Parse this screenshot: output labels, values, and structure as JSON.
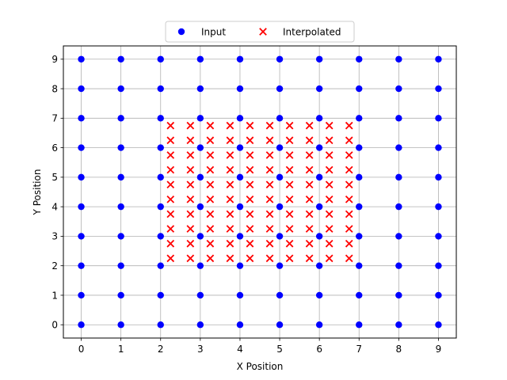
{
  "chart_data": {
    "type": "scatter",
    "xlabel": "X Position",
    "ylabel": "Y Position",
    "xlim": [
      -0.45,
      9.45
    ],
    "ylim": [
      -0.45,
      9.45
    ],
    "xticks": [
      0,
      1,
      2,
      3,
      4,
      5,
      6,
      7,
      8,
      9
    ],
    "yticks": [
      0,
      1,
      2,
      3,
      4,
      5,
      6,
      7,
      8,
      9
    ],
    "xtick_labels": [
      "0",
      "1",
      "2",
      "3",
      "4",
      "5",
      "6",
      "7",
      "8",
      "9"
    ],
    "ytick_labels": [
      "0",
      "1",
      "2",
      "3",
      "4",
      "5",
      "6",
      "7",
      "8",
      "9"
    ],
    "grid": true,
    "legend_placement": "top-center",
    "series": [
      {
        "name": "Input",
        "marker": "circle",
        "color": "#0000ff",
        "x_values": [
          0,
          1,
          2,
          3,
          4,
          5,
          6,
          7,
          8,
          9
        ],
        "y_values": [
          0,
          1,
          2,
          3,
          4,
          5,
          6,
          7,
          8,
          9
        ],
        "layout": "grid"
      },
      {
        "name": "Interpolated",
        "marker": "x",
        "color": "#ff0000",
        "x_values": [
          2.25,
          2.75,
          3.25,
          3.75,
          4.25,
          4.75,
          5.25,
          5.75,
          6.25,
          6.75
        ],
        "y_values": [
          2.25,
          2.75,
          3.25,
          3.75,
          4.25,
          4.75,
          5.25,
          5.75,
          6.25,
          6.75
        ],
        "layout": "grid"
      }
    ],
    "legend": [
      {
        "label": "Input",
        "marker": "circle",
        "color": "#0000ff"
      },
      {
        "label": "Interpolated",
        "marker": "x",
        "color": "#ff0000"
      }
    ]
  }
}
